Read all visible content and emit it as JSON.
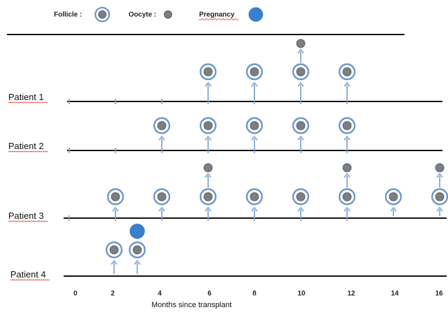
{
  "legend": {
    "follicle_label": "Follicle :",
    "oocyte_label": "Oocyte :",
    "pregnancy_label": "Pregnancy"
  },
  "colors": {
    "follicle_ring": "#6b96c8",
    "follicle_core": "#7b7f83",
    "oocyte": "#7b7f83",
    "arrow": "#8fb0d8",
    "pregnancy": "#3a7fcc",
    "axis": "#111111",
    "tick": "#7fa2d0"
  },
  "x_axis": {
    "title": "Months since transplant",
    "ticks": [
      "0",
      "2",
      "4",
      "6",
      "8",
      "10",
      "12",
      "14",
      "16"
    ]
  },
  "patients": [
    {
      "label": "Patient 1",
      "tick_months": [
        0,
        2,
        4,
        6,
        8,
        10,
        12
      ],
      "follicles": [
        6,
        8,
        10,
        12
      ],
      "oocytes": [
        10
      ],
      "pregnancies": []
    },
    {
      "label": "Patient 2",
      "tick_months": [
        0,
        2,
        4,
        6,
        8,
        10,
        12
      ],
      "follicles": [
        4,
        6,
        8,
        10,
        12
      ],
      "oocytes": [],
      "pregnancies": []
    },
    {
      "label": "Patient 3",
      "tick_months": [
        0,
        2,
        4,
        6,
        8,
        10,
        12
      ],
      "follicles": [
        2,
        4,
        6,
        8,
        10,
        12,
        14,
        16
      ],
      "oocytes": [
        6,
        12,
        16
      ],
      "pregnancies": []
    },
    {
      "label": "Patient 4",
      "tick_months": [],
      "follicles": [
        2,
        3
      ],
      "oocytes": [],
      "pregnancies": [
        3
      ]
    }
  ]
}
